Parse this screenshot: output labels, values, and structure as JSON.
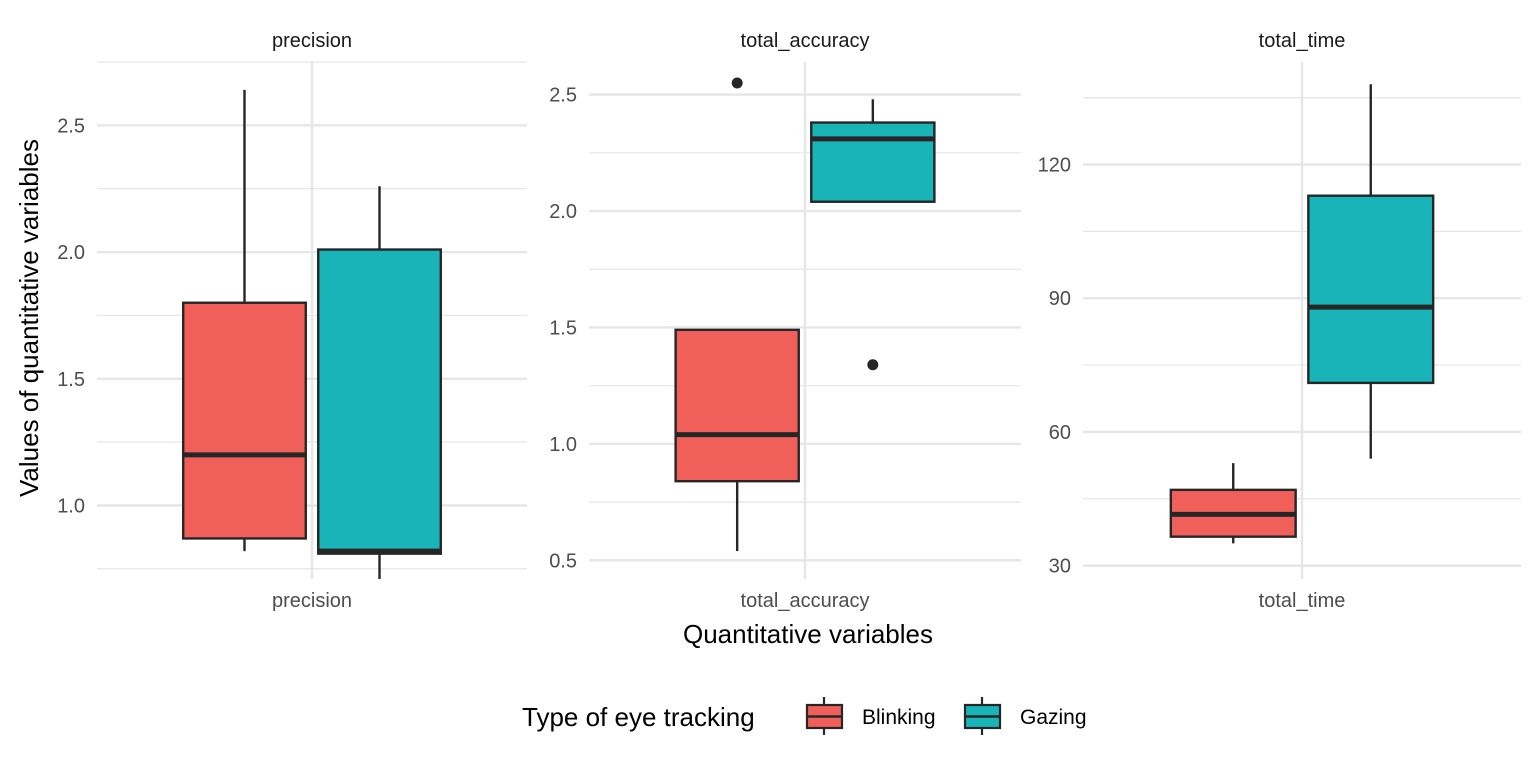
{
  "chart_data": {
    "type": "boxplot",
    "ylabel": "Values of quantitative variables",
    "xlabel": "Quantitative variables",
    "legend": {
      "title": "Type of eye tracking",
      "position": "bottom",
      "entries": [
        "Blinking",
        "Gazing"
      ]
    },
    "colors": {
      "Blinking": "#F15F5B",
      "Gazing": "#18B4B8",
      "outline": "#262626",
      "grid": "#E6E6E6"
    },
    "grid": true,
    "facets": [
      {
        "title": "precision",
        "category": "precision",
        "ylim": [
          0.71,
          2.75
        ],
        "yticks": [
          1.0,
          1.5,
          2.0,
          2.5
        ],
        "ytick_labels": [
          "1.0",
          "1.5",
          "2.0",
          "2.5"
        ],
        "boxes": [
          {
            "group": "Blinking",
            "min": 0.82,
            "q1": 0.87,
            "median": 1.2,
            "q3": 1.8,
            "max": 2.64,
            "outliers": []
          },
          {
            "group": "Gazing",
            "min": 0.71,
            "q1": 0.81,
            "median": 0.82,
            "q3": 2.01,
            "max": 2.26,
            "outliers": []
          }
        ]
      },
      {
        "title": "total_accuracy",
        "category": "total_accuracy",
        "ylim": [
          0.42,
          2.64
        ],
        "yticks": [
          0.5,
          1.0,
          1.5,
          2.0,
          2.5
        ],
        "ytick_labels": [
          "0.5",
          "1.0",
          "1.5",
          "2.0",
          "2.5"
        ],
        "boxes": [
          {
            "group": "Blinking",
            "min": 0.54,
            "q1": 0.84,
            "median": 1.04,
            "q3": 1.49,
            "max": 1.49,
            "outliers": [
              2.55
            ]
          },
          {
            "group": "Gazing",
            "min": 2.04,
            "q1": 2.04,
            "median": 2.31,
            "q3": 2.38,
            "max": 2.48,
            "outliers": [
              1.34
            ]
          }
        ]
      },
      {
        "title": "total_time",
        "category": "total_time",
        "ylim": [
          27,
          143
        ],
        "yticks": [
          30,
          60,
          90,
          120
        ],
        "ytick_labels": [
          "30",
          "60",
          "90",
          "120"
        ],
        "boxes": [
          {
            "group": "Blinking",
            "min": 35,
            "q1": 36.5,
            "median": 41.5,
            "q3": 47,
            "max": 53,
            "outliers": []
          },
          {
            "group": "Gazing",
            "min": 54,
            "q1": 71,
            "median": 88,
            "q3": 113,
            "max": 138,
            "outliers": []
          }
        ]
      }
    ]
  }
}
